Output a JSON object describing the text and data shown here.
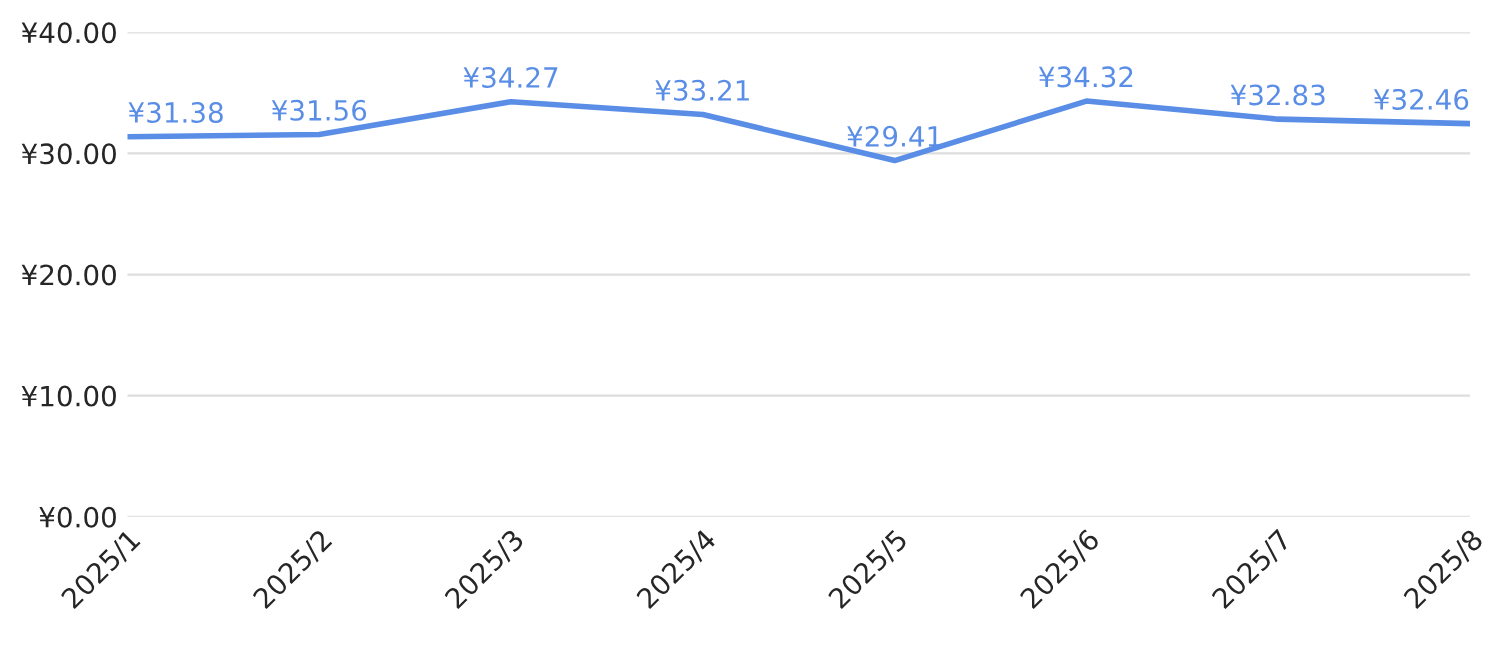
{
  "chart_data": {
    "type": "line",
    "categories": [
      "2025/1",
      "2025/2",
      "2025/3",
      "2025/4",
      "2025/5",
      "2025/6",
      "2025/7",
      "2025/8"
    ],
    "series": [
      {
        "color": "#5a8ee6",
        "values": [
          31.38,
          31.56,
          34.27,
          33.21,
          29.41,
          34.32,
          32.83,
          32.46
        ],
        "value_labels": [
          "¥31.38",
          "¥31.56",
          "¥34.27",
          "¥33.21",
          "¥29.41",
          "¥34.32",
          "¥32.83",
          "¥32.46"
        ]
      }
    ],
    "ylim": [
      0,
      40
    ],
    "yticks": [
      {
        "value": 0,
        "label": "¥0.00"
      },
      {
        "value": 10,
        "label": "¥10.00"
      },
      {
        "value": 20,
        "label": "¥20.00"
      },
      {
        "value": 30,
        "label": "¥30.00"
      },
      {
        "value": 40,
        "label": "¥40.00"
      }
    ],
    "grid": "y",
    "marker": "none",
    "line_style": "solid"
  }
}
